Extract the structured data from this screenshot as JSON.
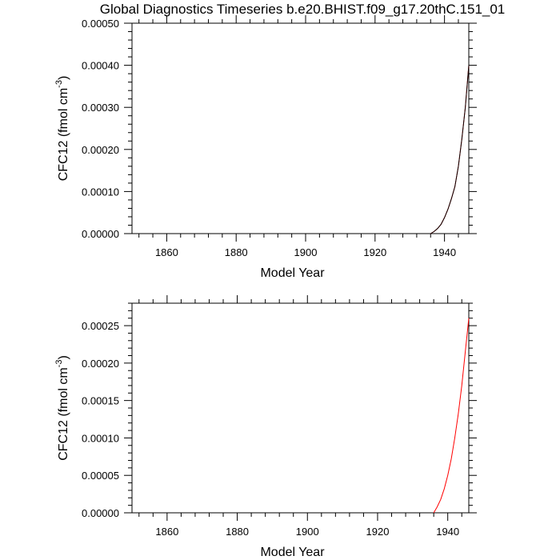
{
  "title": "Global Diagnostics Timeseries b.e20.BHIST.f09_g17.20thC.151_01",
  "colors": {
    "series_black": "#000000",
    "series_red": "#ff0000"
  },
  "chart_data": [
    {
      "type": "line",
      "xlabel": "Model Year",
      "ylabel_main": "CFC12 (fmol cm",
      "ylabel_sup": "-3",
      "ylabel_close": ")",
      "xlim": [
        1850,
        1947
      ],
      "ylim": [
        0,
        0.0005
      ],
      "xticks": [
        1860,
        1880,
        1900,
        1920,
        1940
      ],
      "xtick_labels": [
        "1860",
        "1880",
        "1900",
        "1920",
        "1940"
      ],
      "yticks": [
        0,
        0.0001,
        0.0002,
        0.0003,
        0.0004,
        0.0005
      ],
      "ytick_labels": [
        "0.00000",
        "0.00010",
        "0.00020",
        "0.00030",
        "0.00040",
        "0.00050"
      ],
      "series": [
        {
          "color": "#ff0000",
          "x": [
            1936,
            1937,
            1938,
            1939,
            1940,
            1941,
            1942,
            1943,
            1944,
            1945,
            1946,
            1947
          ],
          "y": [
            0,
            5e-06,
            1.2e-05,
            2.2e-05,
            3.8e-05,
            5.8e-05,
            8.3e-05,
            0.000112,
            0.00016,
            0.000225,
            0.0003,
            0.0004
          ]
        },
        {
          "color": "#000000",
          "x": [
            1936,
            1937,
            1938,
            1939,
            1940,
            1941,
            1942,
            1943,
            1944,
            1945,
            1946,
            1947
          ],
          "y": [
            0,
            5e-06,
            1.2e-05,
            2.2e-05,
            3.8e-05,
            5.8e-05,
            8.3e-05,
            0.000112,
            0.00016,
            0.000225,
            0.0003,
            0.0004
          ]
        }
      ]
    },
    {
      "type": "line",
      "xlabel": "Model Year",
      "ylabel_main": "CFC12 (fmol cm",
      "ylabel_sup": "-3",
      "ylabel_close": ")",
      "xlim": [
        1850,
        1946
      ],
      "ylim": [
        0,
        0.00028
      ],
      "xticks": [
        1860,
        1880,
        1900,
        1920,
        1940
      ],
      "xtick_labels": [
        "1860",
        "1880",
        "1900",
        "1920",
        "1940"
      ],
      "yticks": [
        0,
        5e-05,
        0.0001,
        0.00015,
        0.0002,
        0.00025
      ],
      "ytick_labels": [
        "0.00000",
        "0.00005",
        "0.00010",
        "0.00015",
        "0.00020",
        "0.00025"
      ],
      "series": [
        {
          "color": "#ff0000",
          "x": [
            1936,
            1937,
            1938,
            1939,
            1940,
            1941,
            1942,
            1943,
            1944,
            1945,
            1946
          ],
          "y": [
            0,
            8e-06,
            1.8e-05,
            3.2e-05,
            5e-05,
            7.2e-05,
            0.0001,
            0.000132,
            0.00017,
            0.000215,
            0.00026
          ]
        }
      ]
    }
  ]
}
